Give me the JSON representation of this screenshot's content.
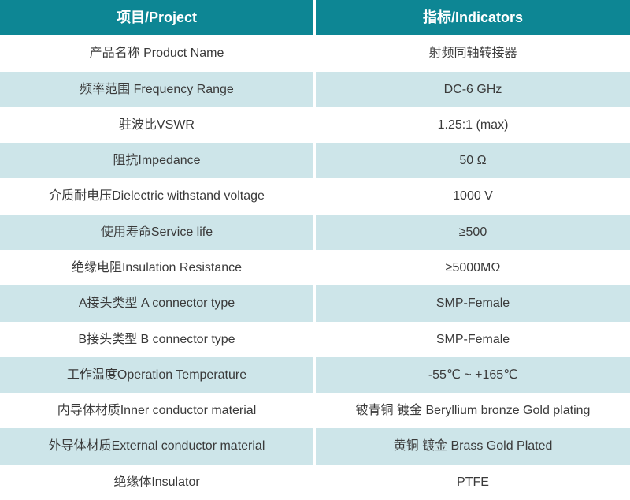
{
  "colors": {
    "header_bg": "#0d8694",
    "header_text": "#ffffff",
    "row_alt_bg": "#cde5e9",
    "row_bg": "#ffffff",
    "body_text": "#3a3a3a",
    "divider": "#ffffff"
  },
  "header": {
    "project": "项目/Project",
    "indicators": "指标/Indicators"
  },
  "rows": [
    {
      "project": "产品名称 Product Name",
      "indicator": "射频同轴转接器"
    },
    {
      "project": "频率范围 Frequency Range",
      "indicator": "DC-6 GHz"
    },
    {
      "project": "驻波比VSWR",
      "indicator": "1.25:1 (max)"
    },
    {
      "project": "阻抗Impedance",
      "indicator": "50 Ω"
    },
    {
      "project": "介质耐电压Dielectric withstand voltage",
      "indicator": "1000 V"
    },
    {
      "project": "使用寿命Service life",
      "indicator": "≥500"
    },
    {
      "project": "绝缘电阻Insulation Resistance",
      "indicator": "≥5000MΩ"
    },
    {
      "project": "A接头类型 A connector type",
      "indicator": "SMP-Female"
    },
    {
      "project": "B接头类型 B connector type",
      "indicator": "SMP-Female"
    },
    {
      "project": "工作温度Operation Temperature",
      "indicator": "-55℃ ~ +165℃"
    },
    {
      "project": "内导体材质Inner conductor material",
      "indicator": "铍青铜 镀金 Beryllium bronze Gold plating"
    },
    {
      "project": "外导体材质External conductor material",
      "indicator": "黄铜 镀金 Brass Gold Plated"
    },
    {
      "project": "绝缘体Insulator",
      "indicator": "PTFE"
    }
  ]
}
